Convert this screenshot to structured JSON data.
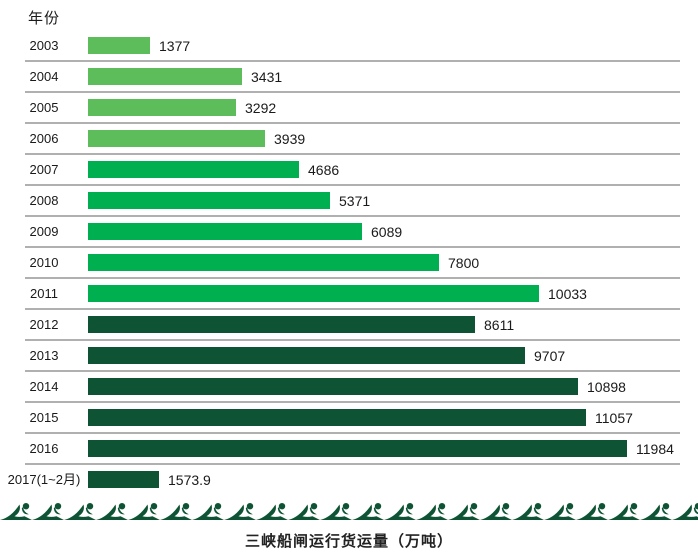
{
  "palette": {
    "light_green": "#5CBD5A",
    "bright_green": "#00B050",
    "dark_green": "#0E5434",
    "separator_gray": "#B0B0B0",
    "wave_green": "#0E5434",
    "text_black": "#1A1A1A",
    "title_black": "#222222"
  },
  "chart_data": {
    "type": "bar",
    "orientation": "horizontal",
    "title": "三峡船闸运行货运量（万吨）",
    "ylabel": "年份",
    "xlabel": "",
    "xlim": [
      0,
      12000
    ],
    "legend": "none",
    "grid": "horizontal row separators between year rows",
    "categories": [
      "2003",
      "2004",
      "2005",
      "2006",
      "2007",
      "2008",
      "2009",
      "2010",
      "2011",
      "2012",
      "2013",
      "2014",
      "2015",
      "2016",
      "2017(1~2月)"
    ],
    "values": [
      1377,
      3431,
      3292,
      3939,
      4686,
      5371,
      6089,
      7800,
      10033,
      8611,
      9707,
      10898,
      11057,
      11984,
      1573.9
    ],
    "value_labels": [
      "1377",
      "3431",
      "3292",
      "3939",
      "4686",
      "5371",
      "6089",
      "7800",
      "10033",
      "8611",
      "9707",
      "10898",
      "11057",
      "11984",
      "1573.9"
    ],
    "bar_color_keys": [
      "light_green",
      "light_green",
      "light_green",
      "light_green",
      "bright_green",
      "bright_green",
      "bright_green",
      "bright_green",
      "bright_green",
      "dark_green",
      "dark_green",
      "dark_green",
      "dark_green",
      "dark_green",
      "dark_green"
    ],
    "decoration": "wave ornament band along bottom edge"
  }
}
